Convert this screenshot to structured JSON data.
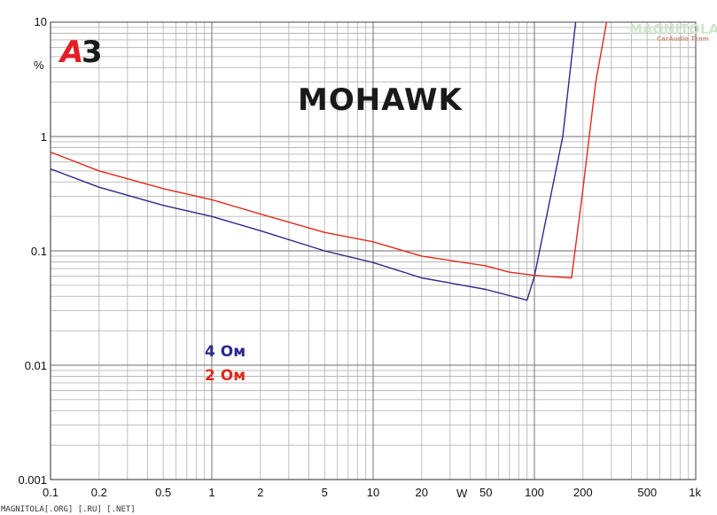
{
  "logo": {
    "a_letter": "A",
    "three_letter": "3",
    "a_color": "#e31e24",
    "three_color": "#1a1a1a"
  },
  "watermark": {
    "text": "MAGNITOLA",
    "sub": "CarAudio Team"
  },
  "footer": {
    "text": "MAGNITOLA[.ORG] [.RU] [.NET]"
  },
  "chart_data": {
    "type": "line",
    "title": "MOHAWK",
    "xlabel": "W",
    "ylabel": "%",
    "x_scale": "log",
    "y_scale": "log",
    "xlim": [
      0.1,
      1000
    ],
    "ylim": [
      0.001,
      10
    ],
    "grid": true,
    "legend_position": "left-center",
    "x_ticks": [
      {
        "value": 0.1,
        "label": "0.1"
      },
      {
        "value": 0.2,
        "label": "0.2"
      },
      {
        "value": 0.5,
        "label": "0.5"
      },
      {
        "value": 1,
        "label": "1"
      },
      {
        "value": 2,
        "label": "2"
      },
      {
        "value": 5,
        "label": "5"
      },
      {
        "value": 10,
        "label": "10"
      },
      {
        "value": 20,
        "label": "20"
      },
      {
        "value": 50,
        "label": "50"
      },
      {
        "value": 100,
        "label": "100"
      },
      {
        "value": 200,
        "label": "200"
      },
      {
        "value": 500,
        "label": "500"
      },
      {
        "value": 1000,
        "label": "1k"
      }
    ],
    "y_ticks": [
      {
        "value": 10,
        "label": "10"
      },
      {
        "value": 1,
        "label": "1"
      },
      {
        "value": 0.1,
        "label": "0.1"
      },
      {
        "value": 0.01,
        "label": "0.01"
      },
      {
        "value": 0.001,
        "label": "0.001"
      }
    ],
    "series": [
      {
        "name": "4 Ом",
        "color": "#2b2a8c",
        "points": [
          [
            0.1,
            0.52
          ],
          [
            0.2,
            0.36
          ],
          [
            0.5,
            0.25
          ],
          [
            1,
            0.2
          ],
          [
            2,
            0.15
          ],
          [
            5,
            0.1
          ],
          [
            10,
            0.079
          ],
          [
            20,
            0.058
          ],
          [
            50,
            0.046
          ],
          [
            90,
            0.037
          ],
          [
            100,
            0.06
          ],
          [
            150,
            1.0
          ],
          [
            180,
            10
          ]
        ]
      },
      {
        "name": "2 Ом",
        "color": "#e02a1c",
        "points": [
          [
            0.1,
            0.73
          ],
          [
            0.2,
            0.5
          ],
          [
            0.5,
            0.35
          ],
          [
            1,
            0.28
          ],
          [
            2,
            0.21
          ],
          [
            5,
            0.145
          ],
          [
            10,
            0.12
          ],
          [
            20,
            0.09
          ],
          [
            50,
            0.074
          ],
          [
            70,
            0.065
          ],
          [
            100,
            0.061
          ],
          [
            170,
            0.058
          ],
          [
            200,
            0.35
          ],
          [
            240,
            3
          ],
          [
            280,
            10
          ]
        ]
      }
    ]
  }
}
